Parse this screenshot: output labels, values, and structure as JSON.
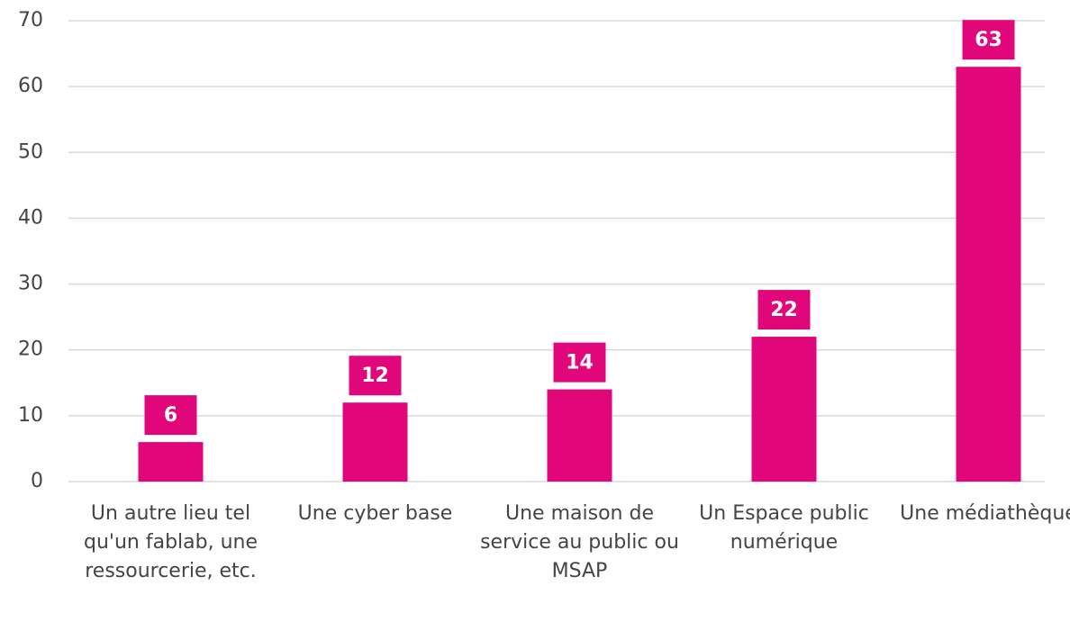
{
  "chart_data": {
    "type": "bar",
    "categories": [
      "Un autre lieu tel qu'un fablab, une ressourcerie, etc.",
      "Une cyber base",
      "Une maison de service au public ou MSAP",
      "Un Espace public numérique",
      "Une médiathèque"
    ],
    "values": [
      6,
      12,
      14,
      22,
      63
    ],
    "color": "#e2067b",
    "ylim": [
      0,
      70
    ],
    "yticks": [
      0,
      10,
      20,
      30,
      40,
      50,
      60,
      70
    ],
    "grid": true
  }
}
